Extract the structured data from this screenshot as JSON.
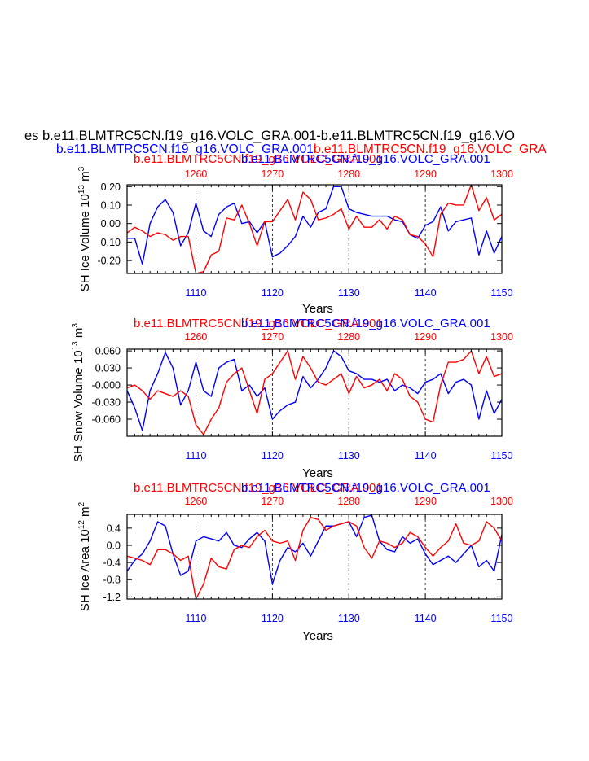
{
  "header": {
    "main_title": "es b.e11.BLMTRC5CN.f19_g16.VOLC_GRA.001-b.e11.BLMTRC5CN.f19_g16.VO",
    "left_blue": "b.e11.BLMTRC5CN.f19_g16.VOLC_GRA.001",
    "right_red": "b.e11.BLMTRC5CN.f19_g16.VOLC_GRA"
  },
  "colors": {
    "blue_series": "#0000ff",
    "red_series": "#ff0000",
    "axis": "#000000"
  },
  "chart_data": [
    {
      "type": "line",
      "panel_title_red": "b.e11.BLMTRC5CN.f19_g16.VOLC_GRA.001",
      "panel_title_blue": "b.e11.BLMTRC5CN.f19_g16.VOLC_GRA.001",
      "ylabel": "SH Ice Volume 10",
      "ylabel_exp": "13",
      "ylabel_unit": " m",
      "ylabel_unit_exp": "3",
      "xlabel": "Years",
      "xlim_bottom": [
        1101,
        1150
      ],
      "xlim_top": [
        1251,
        1300
      ],
      "ylim": [
        -0.27,
        0.21
      ],
      "bottom_ticks": [
        1110,
        1120,
        1130,
        1140,
        1150
      ],
      "top_ticks": [
        1260,
        1270,
        1280,
        1290,
        1300
      ],
      "y_ticks": [
        0.2,
        0.1,
        0.0,
        -0.1,
        -0.2
      ],
      "y_tick_labels": [
        "0.20",
        "0.10",
        "0.00",
        "-0.10",
        "-0.20"
      ],
      "series": [
        {
          "color": "blue",
          "axis": "bottom",
          "x_start": 1101,
          "values": [
            -0.08,
            -0.08,
            -0.22,
            0.0,
            0.09,
            0.13,
            0.06,
            -0.12,
            -0.05,
            0.11,
            -0.04,
            -0.07,
            0.05,
            0.09,
            0.11,
            0.0,
            0.01,
            -0.05,
            0.01,
            -0.18,
            -0.16,
            -0.12,
            -0.07,
            0.04,
            -0.02,
            0.06,
            0.08,
            0.2,
            0.2,
            0.08,
            0.06,
            0.05,
            0.04,
            0.04,
            0.04,
            0.02,
            0.01,
            -0.06,
            -0.08,
            -0.01,
            0.01,
            0.09,
            -0.04,
            0.01,
            0.02,
            0.03,
            -0.17,
            -0.04,
            -0.16,
            -0.07
          ]
        },
        {
          "color": "red",
          "axis": "top",
          "x_start": 1251,
          "values": [
            -0.05,
            -0.02,
            -0.04,
            -0.07,
            -0.05,
            -0.06,
            -0.09,
            -0.07,
            -0.07,
            -0.27,
            -0.26,
            -0.17,
            -0.15,
            0.03,
            0.02,
            0.1,
            0.0,
            -0.12,
            0.01,
            0.01,
            0.07,
            0.13,
            0.02,
            0.17,
            0.13,
            0.02,
            0.03,
            0.05,
            0.08,
            -0.03,
            0.04,
            -0.02,
            -0.02,
            0.02,
            -0.03,
            0.04,
            0.02,
            -0.06,
            -0.07,
            -0.11,
            -0.18,
            0.05,
            0.11,
            0.1,
            0.1,
            0.21,
            0.07,
            0.14,
            0.02,
            0.05
          ]
        }
      ]
    },
    {
      "type": "line",
      "panel_title_red": "b.e11.BLMTRC5CN.f19_g16.VOLC_GRA.001",
      "panel_title_blue": "b.e11.BLMTRC5CN.f19_g16.VOLC_GRA.001",
      "ylabel": "SH Snow Volume 10",
      "ylabel_exp": "13",
      "ylabel_unit": " m",
      "ylabel_unit_exp": "3",
      "xlabel": "Years",
      "xlim_bottom": [
        1101,
        1150
      ],
      "xlim_top": [
        1251,
        1300
      ],
      "ylim": [
        -0.09,
        0.063
      ],
      "bottom_ticks": [
        1110,
        1120,
        1130,
        1140,
        1150
      ],
      "top_ticks": [
        1260,
        1270,
        1280,
        1290,
        1300
      ],
      "y_ticks": [
        0.06,
        0.03,
        0.0,
        -0.03,
        -0.06
      ],
      "y_tick_labels": [
        "0.060",
        "0.030",
        "-0.000",
        "-0.030",
        "-0.060"
      ],
      "series": [
        {
          "color": "blue",
          "axis": "bottom",
          "x_start": 1101,
          "values": [
            -0.01,
            -0.04,
            -0.08,
            -0.01,
            0.02,
            0.057,
            0.03,
            -0.035,
            -0.01,
            0.04,
            -0.01,
            -0.02,
            0.03,
            0.04,
            0.045,
            -0.01,
            0.0,
            -0.02,
            -0.005,
            -0.06,
            -0.045,
            -0.035,
            -0.03,
            0.015,
            -0.005,
            0.01,
            0.03,
            0.06,
            0.05,
            0.025,
            0.02,
            0.01,
            0.01,
            0.005,
            0.01,
            -0.01,
            0.0,
            -0.005,
            -0.015,
            0.005,
            0.01,
            0.02,
            -0.015,
            0.005,
            0.01,
            0.0,
            -0.06,
            -0.01,
            -0.05,
            -0.025
          ]
        },
        {
          "color": "red",
          "axis": "top",
          "x_start": 1251,
          "values": [
            -0.005,
            0.0,
            -0.01,
            -0.025,
            -0.01,
            -0.015,
            -0.02,
            -0.01,
            -0.02,
            -0.07,
            -0.087,
            -0.06,
            -0.04,
            0.005,
            0.02,
            0.03,
            -0.01,
            -0.05,
            0.01,
            0.02,
            0.04,
            0.06,
            0.01,
            0.05,
            0.03,
            0.005,
            0.0,
            0.01,
            0.02,
            -0.015,
            0.015,
            -0.005,
            0.0,
            0.01,
            -0.01,
            0.02,
            0.01,
            -0.02,
            -0.03,
            -0.06,
            -0.065,
            0.0,
            0.04,
            0.04,
            0.045,
            0.06,
            0.02,
            0.05,
            0.015,
            0.02
          ]
        }
      ]
    },
    {
      "type": "line",
      "panel_title_red": "b.e11.BLMTRC5CN.f19_g16.VOLC_GRA.001",
      "panel_title_blue": "b.e11.BLMTRC5CN.f19_g16.VOLC_GRA.001",
      "ylabel": "SH Ice Area 10",
      "ylabel_exp": "12",
      "ylabel_unit": " m",
      "ylabel_unit_exp": "2",
      "xlabel": "Years",
      "xlim_bottom": [
        1101,
        1150
      ],
      "xlim_top": [
        1251,
        1300
      ],
      "ylim": [
        -1.25,
        0.72
      ],
      "bottom_ticks": [
        1110,
        1120,
        1130,
        1140,
        1150
      ],
      "top_ticks": [
        1260,
        1270,
        1280,
        1290,
        1300
      ],
      "y_ticks": [
        0.4,
        0.0,
        -0.4,
        -0.8,
        -1.2
      ],
      "y_tick_labels": [
        "0.4",
        "0.0",
        "-0.4",
        "-0.8",
        "-1.2"
      ],
      "series": [
        {
          "color": "blue",
          "axis": "bottom",
          "x_start": 1101,
          "values": [
            -0.6,
            -0.35,
            -0.2,
            0.1,
            0.55,
            0.45,
            -0.2,
            -0.7,
            -0.6,
            0.1,
            0.2,
            0.15,
            0.1,
            0.3,
            0.0,
            -0.05,
            0.15,
            0.3,
            0.1,
            -0.9,
            -0.35,
            -0.05,
            -0.15,
            0.05,
            -0.25,
            0.1,
            0.45,
            0.45,
            0.5,
            0.55,
            0.2,
            0.65,
            0.7,
            0.1,
            -0.1,
            -0.15,
            0.2,
            0.05,
            0.15,
            -0.2,
            -0.45,
            -0.35,
            -0.25,
            -0.4,
            -0.2,
            0.0,
            -0.5,
            -0.35,
            -0.6,
            0.25
          ]
        },
        {
          "color": "red",
          "axis": "top",
          "x_start": 1251,
          "values": [
            -0.25,
            -0.3,
            -0.35,
            -0.45,
            -0.1,
            -0.1,
            -0.2,
            -0.35,
            -0.25,
            -1.25,
            -0.9,
            -0.3,
            -0.5,
            -0.55,
            -0.1,
            0.0,
            -0.05,
            0.2,
            0.35,
            0.1,
            0.05,
            0.1,
            -0.35,
            0.35,
            0.65,
            0.6,
            0.35,
            0.45,
            0.5,
            0.55,
            0.45,
            -0.05,
            -0.3,
            0.1,
            0.05,
            -0.05,
            0.05,
            0.3,
            0.2,
            -0.05,
            -0.25,
            -0.05,
            0.1,
            0.5,
            0.05,
            0.0,
            0.1,
            0.55,
            0.4,
            0.1
          ]
        }
      ]
    }
  ]
}
